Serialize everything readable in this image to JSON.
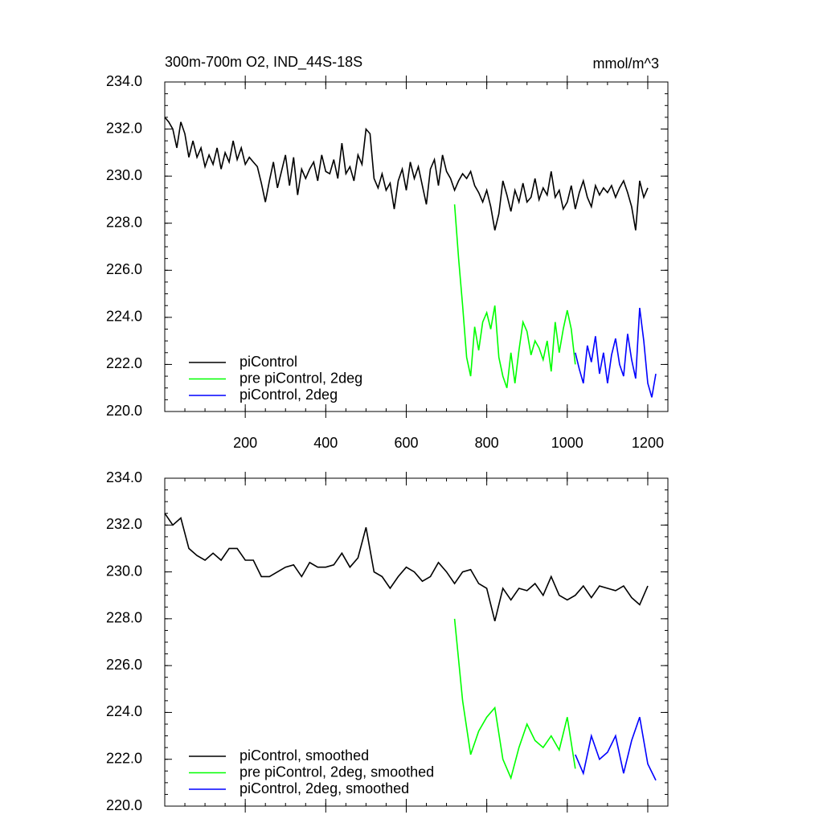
{
  "chart_data": [
    {
      "type": "line",
      "title": "300m-700m O2, IND_44S-18S",
      "units": "mmol/m^3",
      "xlim": [
        0,
        1250
      ],
      "xticks": [
        200,
        400,
        600,
        800,
        1000,
        1200
      ],
      "show_xtick_labels": true,
      "ylim": [
        220,
        234
      ],
      "yticks": [
        {
          "value": 220,
          "label": "220.0"
        },
        {
          "value": 222,
          "label": "222.0"
        },
        {
          "value": 224,
          "label": "224.0"
        },
        {
          "value": 226,
          "label": "226.0"
        },
        {
          "value": 228,
          "label": "228.0"
        },
        {
          "value": 230,
          "label": "230.0"
        },
        {
          "value": 232,
          "label": "232.0"
        },
        {
          "value": 234,
          "label": "234.0"
        }
      ],
      "legend": "lower left",
      "series": [
        {
          "name": "piControl",
          "color": "#000000",
          "x": [
            0,
            10,
            20,
            30,
            40,
            50,
            60,
            70,
            80,
            90,
            100,
            110,
            120,
            130,
            140,
            150,
            160,
            170,
            180,
            190,
            200,
            210,
            220,
            230,
            240,
            250,
            260,
            270,
            280,
            290,
            300,
            310,
            320,
            330,
            340,
            350,
            360,
            370,
            380,
            390,
            400,
            410,
            420,
            430,
            440,
            450,
            460,
            470,
            480,
            490,
            500,
            510,
            520,
            530,
            540,
            550,
            560,
            570,
            580,
            590,
            600,
            610,
            620,
            630,
            640,
            650,
            660,
            670,
            680,
            690,
            700,
            710,
            720,
            730,
            740,
            750,
            760,
            770,
            780,
            790,
            800,
            810,
            820,
            830,
            840,
            850,
            860,
            870,
            880,
            890,
            900,
            910,
            920,
            930,
            940,
            950,
            960,
            970,
            980,
            990,
            1000,
            1010,
            1020,
            1030,
            1040,
            1050,
            1060,
            1070,
            1080,
            1090,
            1100,
            1110,
            1120,
            1130,
            1140,
            1150,
            1160,
            1170,
            1180,
            1190,
            1200
          ],
          "values": [
            232.5,
            232.3,
            232.0,
            231.2,
            232.3,
            231.8,
            230.8,
            231.5,
            230.8,
            231.2,
            230.4,
            230.9,
            230.5,
            231.2,
            230.3,
            231.0,
            230.6,
            231.5,
            230.7,
            231.2,
            230.5,
            230.8,
            230.6,
            230.4,
            229.7,
            228.9,
            229.8,
            230.6,
            229.5,
            230.2,
            230.9,
            229.6,
            230.8,
            229.2,
            230.3,
            229.9,
            230.3,
            230.6,
            229.8,
            230.9,
            230.2,
            230.1,
            230.7,
            229.9,
            231.4,
            230.1,
            230.4,
            229.8,
            230.9,
            230.5,
            232.0,
            231.8,
            229.9,
            229.5,
            230.1,
            229.4,
            229.7,
            228.6,
            229.8,
            230.3,
            229.4,
            230.6,
            229.9,
            230.4,
            229.6,
            228.8,
            230.3,
            230.7,
            229.6,
            230.9,
            230.2,
            229.9,
            229.4,
            229.8,
            230.1,
            229.9,
            230.2,
            229.6,
            229.3,
            228.9,
            229.4,
            228.7,
            227.7,
            228.4,
            229.8,
            229.2,
            228.5,
            229.4,
            228.9,
            229.7,
            228.9,
            229.1,
            229.9,
            229.0,
            229.5,
            229.2,
            230.2,
            229.1,
            229.4,
            228.6,
            228.9,
            229.6,
            228.6,
            229.3,
            229.8,
            229.1,
            228.7,
            229.6,
            229.2,
            229.5,
            229.3,
            229.6,
            229.1,
            229.5,
            229.8,
            229.3,
            228.7,
            227.7,
            229.8,
            229.1,
            229.5
          ]
        },
        {
          "name": "pre piControl, 2deg",
          "color": "#00ff00",
          "x": [
            720,
            730,
            740,
            750,
            760,
            770,
            780,
            790,
            800,
            810,
            820,
            830,
            840,
            850,
            860,
            870,
            880,
            890,
            900,
            910,
            920,
            930,
            940,
            950,
            960,
            970,
            980,
            990,
            1000,
            1010,
            1020
          ],
          "values": [
            228.8,
            226.5,
            224.5,
            222.3,
            221.5,
            223.6,
            222.6,
            223.8,
            224.2,
            223.5,
            224.5,
            222.3,
            221.5,
            221.0,
            222.5,
            221.2,
            222.6,
            223.8,
            223.4,
            222.4,
            223.0,
            222.7,
            222.2,
            223.0,
            221.7,
            223.8,
            222.5,
            223.5,
            224.3,
            223.5,
            222.0
          ]
        },
        {
          "name": "piControl, 2deg",
          "color": "#0000ff",
          "x": [
            1020,
            1030,
            1040,
            1050,
            1060,
            1070,
            1080,
            1090,
            1100,
            1110,
            1120,
            1130,
            1140,
            1150,
            1160,
            1170,
            1180,
            1190,
            1200,
            1210,
            1220
          ],
          "values": [
            222.5,
            221.8,
            221.2,
            222.8,
            222.1,
            223.2,
            221.6,
            222.5,
            221.2,
            222.4,
            223.1,
            222.0,
            221.5,
            223.3,
            222.2,
            221.4,
            224.4,
            223.0,
            221.2,
            220.6,
            221.6
          ]
        }
      ]
    },
    {
      "type": "line",
      "xlim": [
        0,
        1250
      ],
      "xticks": [
        200,
        400,
        600,
        800,
        1000,
        1200
      ],
      "show_xtick_labels": false,
      "ylim": [
        220,
        234
      ],
      "yticks": [
        {
          "value": 220,
          "label": "220.0"
        },
        {
          "value": 222,
          "label": "222.0"
        },
        {
          "value": 224,
          "label": "224.0"
        },
        {
          "value": 226,
          "label": "226.0"
        },
        {
          "value": 228,
          "label": "228.0"
        },
        {
          "value": 230,
          "label": "230.0"
        },
        {
          "value": 232,
          "label": "232.0"
        },
        {
          "value": 234,
          "label": "234.0"
        }
      ],
      "legend": "lower left",
      "series": [
        {
          "name": "piControl, smoothed",
          "color": "#000000",
          "x": [
            0,
            20,
            40,
            60,
            80,
            100,
            120,
            140,
            160,
            180,
            200,
            220,
            240,
            260,
            280,
            300,
            320,
            340,
            360,
            380,
            400,
            420,
            440,
            460,
            480,
            500,
            520,
            540,
            560,
            580,
            600,
            620,
            640,
            660,
            680,
            700,
            720,
            740,
            760,
            780,
            800,
            820,
            840,
            860,
            880,
            900,
            920,
            940,
            960,
            980,
            1000,
            1020,
            1040,
            1060,
            1080,
            1100,
            1120,
            1140,
            1160,
            1180,
            1200
          ],
          "values": [
            232.5,
            232.0,
            232.3,
            231.0,
            230.7,
            230.5,
            230.8,
            230.5,
            231.0,
            231.0,
            230.5,
            230.5,
            229.8,
            229.8,
            230.0,
            230.2,
            230.3,
            229.8,
            230.4,
            230.2,
            230.2,
            230.3,
            230.8,
            230.2,
            230.6,
            231.9,
            230.0,
            229.8,
            229.3,
            229.8,
            230.2,
            230.0,
            229.6,
            229.8,
            230.4,
            230.0,
            229.5,
            230.0,
            230.1,
            229.5,
            229.3,
            227.9,
            229.3,
            228.8,
            229.3,
            229.2,
            229.5,
            229.0,
            229.8,
            229.0,
            228.8,
            229.0,
            229.4,
            228.9,
            229.4,
            229.3,
            229.2,
            229.4,
            228.9,
            228.6,
            229.4
          ]
        },
        {
          "name": "pre piControl, 2deg, smoothed",
          "color": "#00ff00",
          "x": [
            720,
            740,
            760,
            780,
            800,
            820,
            840,
            860,
            880,
            900,
            920,
            940,
            960,
            980,
            1000,
            1020
          ],
          "values": [
            228.0,
            224.5,
            222.2,
            223.2,
            223.8,
            224.2,
            222.0,
            221.2,
            222.5,
            223.5,
            222.8,
            222.5,
            223.0,
            222.4,
            223.8,
            221.6
          ]
        },
        {
          "name": "piControl, 2deg, smoothed",
          "color": "#0000ff",
          "x": [
            1020,
            1040,
            1060,
            1080,
            1100,
            1120,
            1140,
            1160,
            1180,
            1200,
            1220
          ],
          "values": [
            222.2,
            221.4,
            223.0,
            222.0,
            222.3,
            223.0,
            221.4,
            222.8,
            223.8,
            221.8,
            221.1
          ]
        }
      ]
    }
  ]
}
